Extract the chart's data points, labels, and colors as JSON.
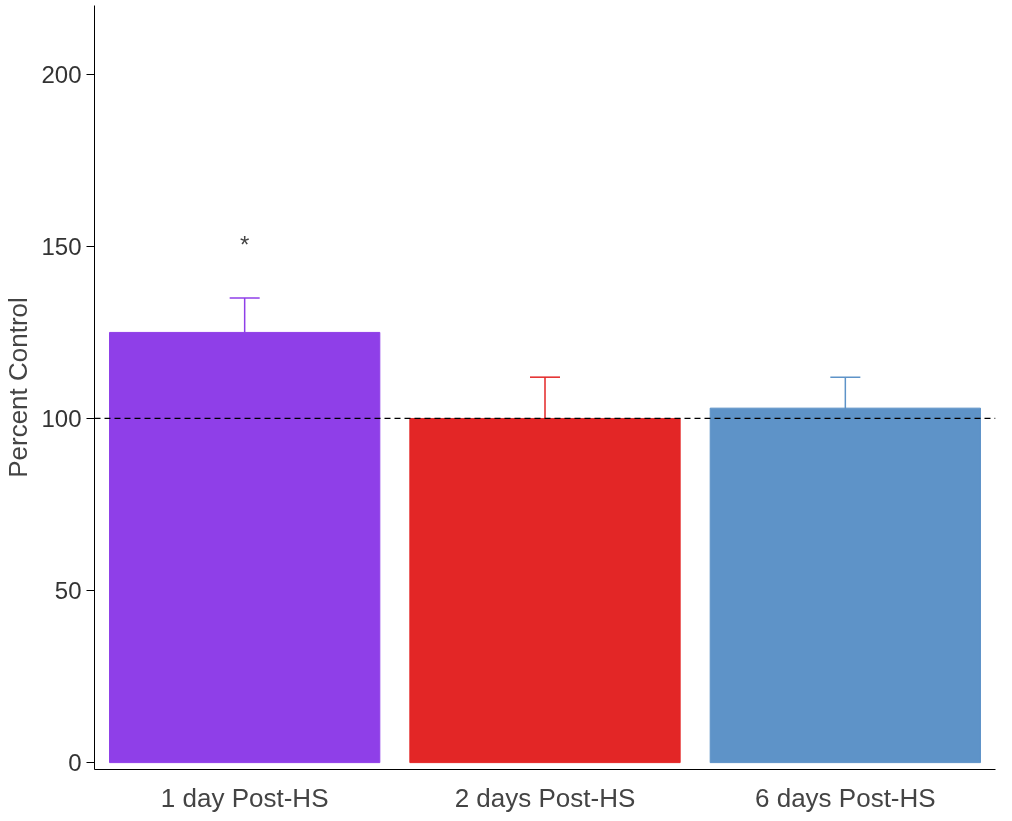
{
  "chart_data": {
    "type": "bar",
    "ylabel": "Percent Control",
    "categories": [
      "1 day Post-HS",
      "2 days Post-HS",
      "6 days Post-HS"
    ],
    "values": [
      125,
      100,
      103
    ],
    "errors": [
      10,
      12,
      9
    ],
    "colors": [
      "#8f3fe8",
      "#e32626",
      "#5e93c8"
    ],
    "ylim": [
      -2,
      220
    ],
    "yticks": [
      0,
      50,
      100,
      150,
      200
    ],
    "grid": false,
    "ref_lines": [
      {
        "axis": "y",
        "value": 100,
        "label": null,
        "color": "#000000",
        "line_style": "dashed"
      }
    ],
    "annotations": [
      "*"
    ]
  }
}
